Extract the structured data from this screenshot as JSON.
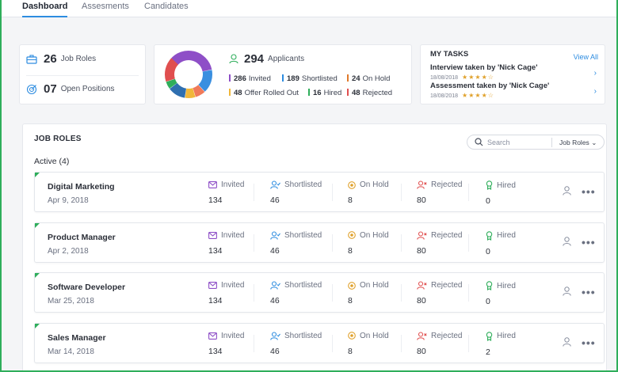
{
  "nav": {
    "tabs": [
      {
        "label": "Dashboard",
        "active": true
      },
      {
        "label": "Assesments",
        "active": false
      },
      {
        "label": "Candidates",
        "active": false
      }
    ]
  },
  "summary": {
    "job_roles_count": "26",
    "job_roles_label": "Job Roles",
    "open_positions_count": "07",
    "open_positions_label": "Open Positions"
  },
  "applicants": {
    "total": "294",
    "label": "Applicants",
    "stats": [
      {
        "value": "286",
        "label": "Invited",
        "color": "#8e4fc7"
      },
      {
        "value": "189",
        "label": "Shortlisted",
        "color": "#2d8ce0"
      },
      {
        "value": "24",
        "label": "On Hold",
        "color": "#e07a2b"
      },
      {
        "value": "48",
        "label": "Offer Rolled Out",
        "color": "#f0b73a"
      },
      {
        "value": "16",
        "label": "Hired",
        "color": "#2fae5b"
      },
      {
        "value": "48",
        "label": "Rejected",
        "color": "#e04f4f"
      }
    ],
    "donut_colors": [
      "#8e4fc7",
      "#3a8fe0",
      "#f07a5a",
      "#f0b73a",
      "#2f6fb0",
      "#2fae5b",
      "#e04f4f"
    ]
  },
  "tasks": {
    "title": "MY TASKS",
    "view_all": "View All",
    "items": [
      {
        "text": "Interview taken by 'Nick Cage'",
        "date": "18/08/2018",
        "stars": "★★★★☆"
      },
      {
        "text": "Assessment taken by 'Nick Cage'",
        "date": "18/08/2018",
        "stars": "★★★★☆"
      }
    ]
  },
  "job_roles": {
    "title": "JOB ROLES",
    "active_label": "Active (4)",
    "search_placeholder": "Search",
    "filter_label": "Job Roles",
    "columns": [
      "Invited",
      "Shortlisted",
      "On Hold",
      "Rejected",
      "Hired"
    ],
    "rows": [
      {
        "name": "Digital Marketing",
        "date": "Apr 9, 2018",
        "invited": "134",
        "shortlisted": "46",
        "on_hold": "8",
        "rejected": "80",
        "hired": "0"
      },
      {
        "name": "Product Manager",
        "date": "Apr 2, 2018",
        "invited": "134",
        "shortlisted": "46",
        "on_hold": "8",
        "rejected": "80",
        "hired": "0"
      },
      {
        "name": "Software Developer",
        "date": "Mar 25, 2018",
        "invited": "134",
        "shortlisted": "46",
        "on_hold": "8",
        "rejected": "80",
        "hired": "0"
      },
      {
        "name": "Sales Manager",
        "date": "Mar 14, 2018",
        "invited": "134",
        "shortlisted": "46",
        "on_hold": "8",
        "rejected": "80",
        "hired": "2"
      }
    ]
  },
  "colors": {
    "accent_blue": "#2d8ce0",
    "frame_green": "#2fae5b",
    "invited": "#8e4fc7",
    "shortlisted": "#2d8ce0",
    "on_hold": "#e0a12b",
    "rejected": "#e04f4f",
    "hired": "#2fae5b"
  }
}
